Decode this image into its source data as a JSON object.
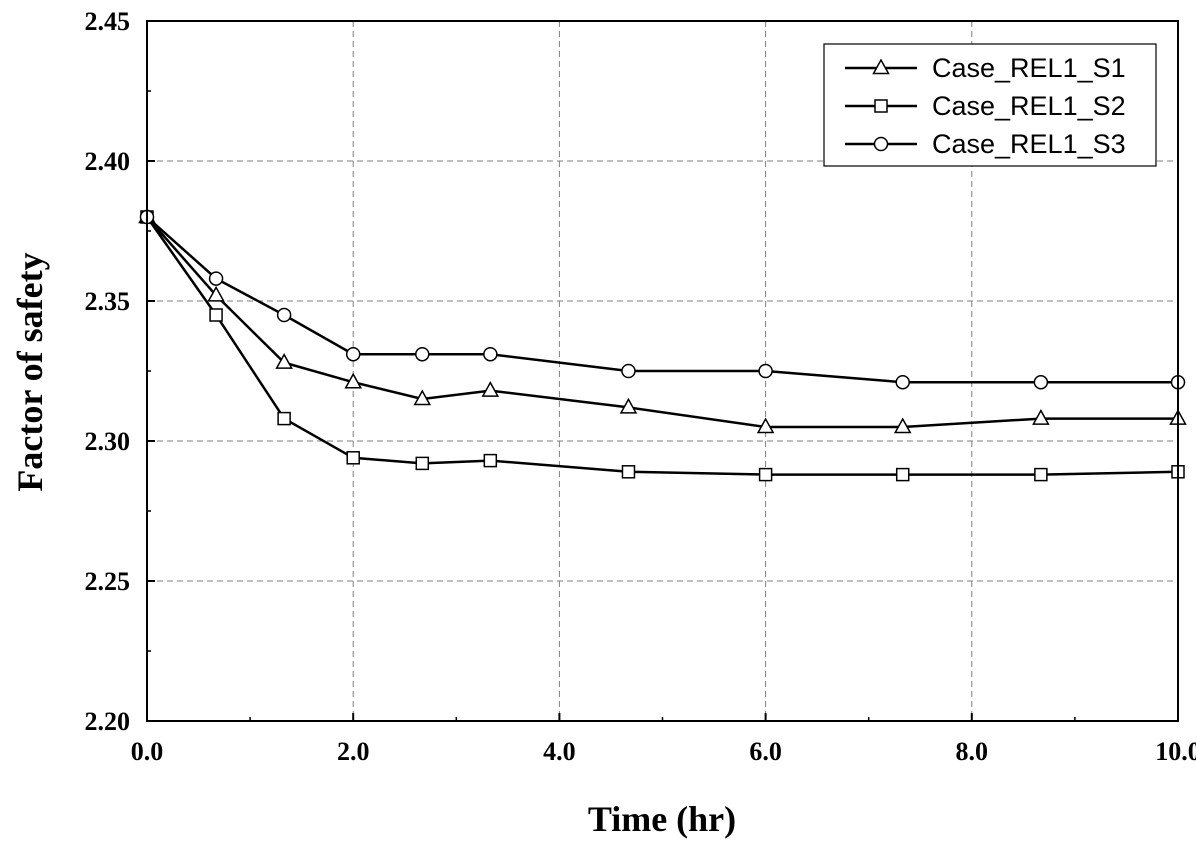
{
  "chart_data": {
    "type": "line",
    "title": "",
    "xlabel": "Time (hr)",
    "ylabel": "Factor of safety",
    "xlim": [
      0,
      10
    ],
    "ylim": [
      2.2,
      2.45
    ],
    "xticks": [
      "0.0",
      "2.0",
      "4.0",
      "6.0",
      "8.0",
      "10.0"
    ],
    "yticks": [
      "2.20",
      "2.25",
      "2.30",
      "2.35",
      "2.40",
      "2.45"
    ],
    "grid": true,
    "legend_position": "top-right",
    "series": [
      {
        "name": "Case_REL1_S1",
        "marker": "triangle",
        "x": [
          0.0,
          0.67,
          1.33,
          2.0,
          2.67,
          3.33,
          4.67,
          6.0,
          7.33,
          8.67,
          10.0
        ],
        "y": [
          2.38,
          2.352,
          2.328,
          2.321,
          2.315,
          2.318,
          2.312,
          2.305,
          2.305,
          2.308,
          2.308
        ]
      },
      {
        "name": "Case_REL1_S2",
        "marker": "square",
        "x": [
          0.0,
          0.67,
          1.33,
          2.0,
          2.67,
          3.33,
          4.67,
          6.0,
          7.33,
          8.67,
          10.0
        ],
        "y": [
          2.38,
          2.345,
          2.308,
          2.294,
          2.292,
          2.293,
          2.289,
          2.288,
          2.288,
          2.288,
          2.289
        ]
      },
      {
        "name": "Case_REL1_S3",
        "marker": "circle",
        "x": [
          0.0,
          0.67,
          1.33,
          2.0,
          2.67,
          3.33,
          4.67,
          6.0,
          7.33,
          8.67,
          10.0
        ],
        "y": [
          2.38,
          2.358,
          2.345,
          2.331,
          2.331,
          2.331,
          2.325,
          2.325,
          2.321,
          2.321,
          2.321
        ]
      }
    ]
  }
}
